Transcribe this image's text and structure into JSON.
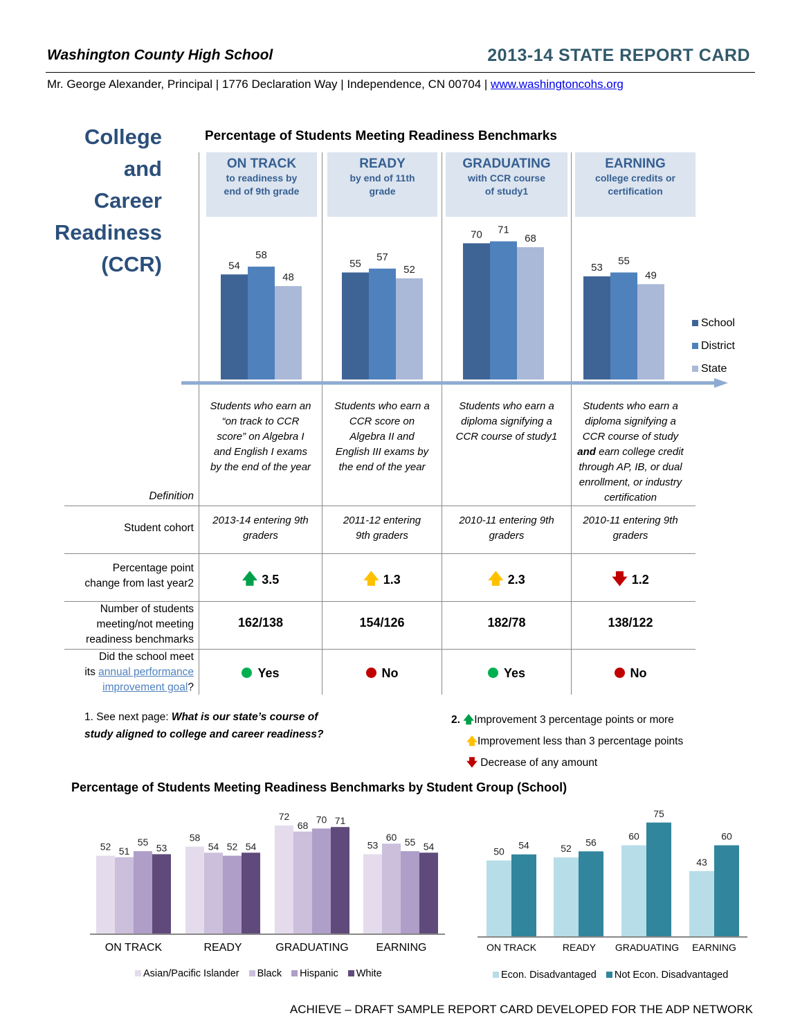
{
  "header": {
    "school": "Washington County High School",
    "report_title": "2013-14 STATE REPORT CARD",
    "address": "Mr. George Alexander, Principal | 1776 Declaration Way | Independence, CN 00704 | ",
    "website": "www.washingtoncohs.org"
  },
  "sidebar_title": [
    "College",
    "and",
    "Career",
    "Readiness",
    "(CCR)"
  ],
  "chart_data": [
    {
      "type": "bar",
      "title": "Percentage of Students Meeting Readiness Benchmarks",
      "categories": [
        "ON TRACK",
        "READY",
        "GRADUATING",
        "EARNING"
      ],
      "series": [
        {
          "name": "School",
          "values": [
            54,
            55,
            70,
            53
          ],
          "color": "#3e6496"
        },
        {
          "name": "District",
          "values": [
            58,
            57,
            71,
            55
          ],
          "color": "#4f81bd"
        },
        {
          "name": "State",
          "values": [
            48,
            52,
            68,
            49
          ],
          "color": "#aab9d8"
        }
      ],
      "legend": "right"
    },
    {
      "type": "bar",
      "title": "Percentage of Students Meeting Readiness Benchmarks by Student Group (School)",
      "categories": [
        "ON TRACK",
        "READY",
        "GRADUATING",
        "EARNING"
      ],
      "series": [
        {
          "name": "Asian/Pacific Islander",
          "values": [
            52,
            58,
            72,
            53
          ],
          "color": "#e4dcec"
        },
        {
          "name": "Black",
          "values": [
            51,
            54,
            68,
            60
          ],
          "color": "#cbbfdc"
        },
        {
          "name": "Hispanic",
          "values": [
            55,
            52,
            70,
            55
          ],
          "color": "#ae9ec8"
        },
        {
          "name": "White",
          "values": [
            53,
            54,
            71,
            54
          ],
          "color": "#604a7b"
        }
      ],
      "legend": "bottom"
    },
    {
      "type": "bar",
      "categories": [
        "ON TRACK",
        "READY",
        "GRADUATING",
        "EARNING"
      ],
      "series": [
        {
          "name": "Econ. Disadvantaged",
          "values": [
            50,
            52,
            60,
            43
          ],
          "color": "#b7dde8"
        },
        {
          "name": "Not Econ. Disadvantaged",
          "values": [
            54,
            56,
            75,
            60
          ],
          "color": "#31859c"
        }
      ],
      "legend": "bottom"
    }
  ],
  "columns": [
    {
      "title": "ON TRACK",
      "sub1": "to readiness by",
      "sub2": "end of 9th grade",
      "definition": [
        "Students who earn an",
        "“on track to CCR",
        "score” on Algebra I",
        "and English I exams",
        "by the end of the year"
      ],
      "cohort": [
        "2013-14 entering 9th",
        "graders"
      ],
      "change": "3.5",
      "change_dir": "up",
      "change_color": "#00a04a",
      "students": "162/138",
      "goal": "Yes",
      "goal_color": "#00b050"
    },
    {
      "title": "READY",
      "sub1": "by end of 11th",
      "sub2": "grade",
      "definition": [
        "Students who earn a",
        "CCR score on",
        "Algebra II and",
        "English III exams by",
        "the end of the year"
      ],
      "cohort": [
        "2011-12 entering",
        "9th graders"
      ],
      "change": "1.3",
      "change_dir": "up",
      "change_color": "#ffc000",
      "students": "154/126",
      "goal": "No",
      "goal_color": "#c00000"
    },
    {
      "title": "GRADUATING",
      "sub1": "with CCR course",
      "sub2": "of study1",
      "definition": [
        "Students who earn a",
        "diploma signifying a",
        "CCR course of study1"
      ],
      "cohort": [
        "2010-11 entering 9th",
        "graders"
      ],
      "change": "2.3",
      "change_dir": "up",
      "change_color": "#ffc000",
      "students": "182/78",
      "goal": "Yes",
      "goal_color": "#00b050"
    },
    {
      "title": "EARNING",
      "sub1": "college credits or",
      "sub2": "certification",
      "definition": [
        "Students who earn a",
        "diploma signifying a",
        "CCR course of study",
        "and earn college credit",
        "through AP, IB, or dual",
        "enrollment, or industry",
        "certification"
      ],
      "cohort": [
        "2010-11 entering 9th",
        "graders"
      ],
      "change": "1.2",
      "change_dir": "down",
      "change_color": "#c00000",
      "students": "138/122",
      "goal": "No",
      "goal_color": "#c00000"
    }
  ],
  "rows": {
    "definition": "Definition",
    "cohort": "Student cohort",
    "change": [
      "Percentage point",
      "change from last year2"
    ],
    "students": [
      "Number of students",
      "meeting/not meeting",
      "readiness benchmarks"
    ],
    "goal": {
      "l1": "Did the school meet",
      "l2": "its ",
      "link1": "annual performance",
      "link2": "improvement goal",
      "end": "?"
    }
  },
  "footnotes": {
    "n1_prefix": "1. See next page: ",
    "n1_bold": "What is our state’s course of",
    "n1_bold2": "study aligned to college and career readiness?",
    "n2_num": "2.",
    "n2_items": [
      "Improvement 3 percentage points or more",
      "Improvement less than 3 percentage points",
      "Decrease of any amount"
    ]
  },
  "footer": "ACHIEVE – DRAFT SAMPLE REPORT CARD DEVELOPED FOR THE ADP NETWORK"
}
